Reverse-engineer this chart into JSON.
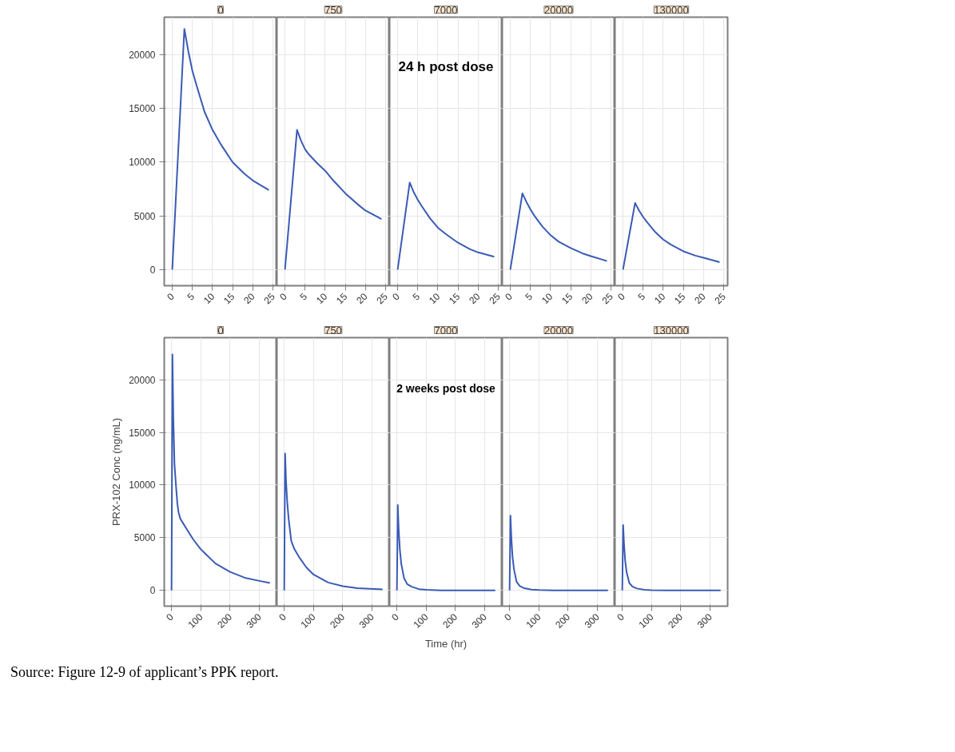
{
  "chart_data": [
    {
      "type": "line",
      "title": "0",
      "x": [
        0,
        3,
        4,
        5,
        6,
        8,
        10,
        12,
        15,
        18,
        20,
        24
      ],
      "series": [
        {
          "color": "#3a5bb5",
          "values": [
            0,
            22400,
            20300,
            18500,
            17200,
            14700,
            13000,
            11700,
            10000,
            8900,
            8300,
            7400
          ]
        }
      ],
      "xlim": [
        -2,
        26
      ],
      "xticks": [
        0,
        5,
        10,
        15,
        20,
        25
      ],
      "ylim": [
        -1500,
        23500
      ],
      "yticks": [
        0,
        5000,
        10000,
        15000,
        20000
      ],
      "grid": true
    },
    {
      "type": "line",
      "title": "750",
      "x": [
        0,
        3,
        4,
        5,
        6,
        8,
        10,
        12,
        15,
        18,
        20,
        24
      ],
      "series": [
        {
          "color": "#3a5bb5",
          "values": [
            0,
            13000,
            12000,
            11200,
            10700,
            9900,
            9200,
            8300,
            7100,
            6100,
            5500,
            4700
          ]
        }
      ],
      "xlim": [
        -2,
        26
      ],
      "xticks": [
        0,
        5,
        10,
        15,
        20,
        25
      ],
      "ylim": [
        -1500,
        23500
      ],
      "yticks": [
        0,
        5000,
        10000,
        15000,
        20000
      ],
      "grid": true,
      "tick_labels": "x"
    },
    {
      "type": "line",
      "title": "7000",
      "x": [
        0,
        3,
        4,
        5,
        6,
        8,
        10,
        12,
        15,
        18,
        20,
        24
      ],
      "series": [
        {
          "color": "#3a5bb5",
          "values": [
            0,
            8100,
            7200,
            6500,
            5900,
            4800,
            3900,
            3300,
            2500,
            1900,
            1600,
            1200
          ]
        }
      ],
      "xlim": [
        -2,
        26
      ],
      "xticks": [
        0,
        5,
        10,
        15,
        20,
        25
      ],
      "ylim": [
        -1500,
        23500
      ],
      "yticks": [
        0,
        5000,
        10000,
        15000,
        20000
      ],
      "grid": true,
      "tick_labels": "x",
      "annotations": [
        "24 h post dose"
      ]
    },
    {
      "type": "line",
      "title": "20000",
      "x": [
        0,
        3,
        4,
        5,
        6,
        8,
        10,
        12,
        15,
        18,
        20,
        24
      ],
      "series": [
        {
          "color": "#3a5bb5",
          "values": [
            0,
            7100,
            6300,
            5600,
            5000,
            4000,
            3200,
            2600,
            2000,
            1500,
            1250,
            800
          ]
        }
      ],
      "xlim": [
        -2,
        26
      ],
      "xticks": [
        0,
        5,
        10,
        15,
        20,
        25
      ],
      "ylim": [
        -1500,
        23500
      ],
      "yticks": [
        0,
        5000,
        10000,
        15000,
        20000
      ],
      "grid": true,
      "tick_labels": "x"
    },
    {
      "type": "line",
      "title": "130000",
      "x": [
        0,
        3,
        4,
        5,
        6,
        8,
        10,
        12,
        15,
        18,
        20,
        24
      ],
      "series": [
        {
          "color": "#3a5bb5",
          "values": [
            0,
            6200,
            5500,
            4900,
            4400,
            3500,
            2800,
            2300,
            1700,
            1300,
            1100,
            700
          ]
        }
      ],
      "xlim": [
        -2,
        26
      ],
      "xticks": [
        0,
        5,
        10,
        15,
        20,
        25
      ],
      "ylim": [
        -1500,
        23500
      ],
      "yticks": [
        0,
        5000,
        10000,
        15000,
        20000
      ],
      "grid": true,
      "tick_labels": "x"
    },
    {
      "type": "line",
      "title": "0",
      "ylabel": "PRX-102 Conc (ng/mL)",
      "x": [
        0,
        3,
        6,
        10,
        15,
        20,
        24,
        30,
        50,
        75,
        100,
        150,
        200,
        250,
        300,
        336
      ],
      "series": [
        {
          "color": "#3a5bb5",
          "values": [
            0,
            22400,
            16500,
            12000,
            10000,
            8200,
            7400,
            6800,
            5900,
            4800,
            3900,
            2550,
            1750,
            1200,
            900,
            700
          ]
        }
      ],
      "xlim": [
        -25,
        360
      ],
      "xticks": [
        0,
        100,
        200,
        300
      ],
      "ylim": [
        -1500,
        24000
      ],
      "yticks": [
        0,
        5000,
        10000,
        15000,
        20000
      ],
      "grid": true
    },
    {
      "type": "line",
      "title": "750",
      "x": [
        0,
        3,
        6,
        10,
        15,
        24,
        35,
        50,
        75,
        100,
        150,
        200,
        250,
        336
      ],
      "series": [
        {
          "color": "#3a5bb5",
          "values": [
            0,
            13000,
            10500,
            8500,
            6800,
            4700,
            3900,
            3200,
            2200,
            1500,
            750,
            400,
            200,
            100
          ]
        }
      ],
      "xlim": [
        -25,
        360
      ],
      "xticks": [
        0,
        100,
        200,
        300
      ],
      "ylim": [
        -1500,
        24000
      ],
      "yticks": [
        0,
        5000,
        10000,
        15000,
        20000
      ],
      "grid": true,
      "tick_labels": "x"
    },
    {
      "type": "line",
      "title": "7000",
      "xlabel": "Time (hr)",
      "x": [
        0,
        3,
        6,
        10,
        15,
        24,
        35,
        50,
        75,
        100,
        150,
        336
      ],
      "series": [
        {
          "color": "#3a5bb5",
          "values": [
            0,
            8100,
            5800,
            3900,
            2500,
            1200,
            600,
            350,
            120,
            50,
            0,
            0
          ]
        }
      ],
      "xlim": [
        -25,
        360
      ],
      "xticks": [
        0,
        100,
        200,
        300
      ],
      "ylim": [
        -1500,
        24000
      ],
      "yticks": [
        0,
        5000,
        10000,
        15000,
        20000
      ],
      "grid": true,
      "tick_labels": "x",
      "annotations": [
        "2 weeks post dose"
      ]
    },
    {
      "type": "line",
      "title": "20000",
      "x": [
        0,
        3,
        6,
        10,
        15,
        24,
        35,
        50,
        75,
        100,
        150,
        336
      ],
      "series": [
        {
          "color": "#3a5bb5",
          "values": [
            0,
            7100,
            5000,
            3200,
            2000,
            800,
            400,
            200,
            80,
            30,
            0,
            0
          ]
        }
      ],
      "xlim": [
        -25,
        360
      ],
      "xticks": [
        0,
        100,
        200,
        300
      ],
      "ylim": [
        -1500,
        24000
      ],
      "yticks": [
        0,
        5000,
        10000,
        15000,
        20000
      ],
      "grid": true,
      "tick_labels": "x"
    },
    {
      "type": "line",
      "title": "130000",
      "x": [
        0,
        3,
        6,
        10,
        15,
        24,
        35,
        50,
        75,
        100,
        150,
        336
      ],
      "series": [
        {
          "color": "#3a5bb5",
          "values": [
            0,
            6200,
            4400,
            2800,
            1700,
            700,
            350,
            180,
            60,
            20,
            0,
            0
          ]
        }
      ],
      "xlim": [
        -25,
        360
      ],
      "xticks": [
        0,
        100,
        200,
        300
      ],
      "ylim": [
        -1500,
        24000
      ],
      "yticks": [
        0,
        5000,
        10000,
        15000,
        20000
      ],
      "grid": true,
      "tick_labels": "x",
      "annotations": [
        "Source: Figure 12-9 of applicant’s PPK report."
      ]
    }
  ]
}
